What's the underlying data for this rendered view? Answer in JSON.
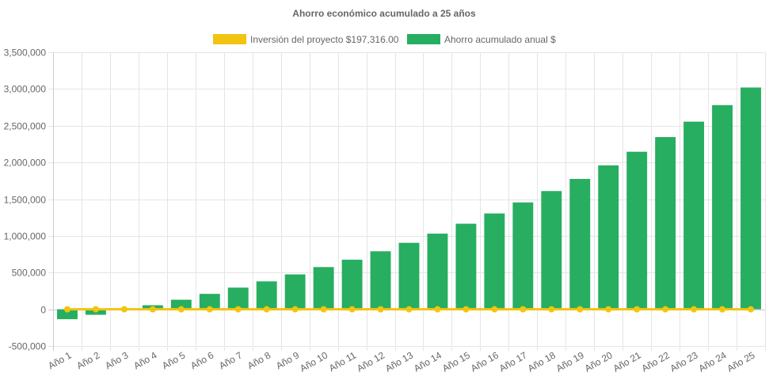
{
  "chart_data": {
    "type": "bar",
    "title": "Ahorro económico acumulado a 25 años",
    "categories": [
      "Año 1",
      "Año 2",
      "Año 3",
      "Año 4",
      "Año 5",
      "Año 6",
      "Año 7",
      "Año 8",
      "Año 9",
      "Año 10",
      "Año 11",
      "Año 12",
      "Año 13",
      "Año 14",
      "Año 15",
      "Año 16",
      "Año 17",
      "Año 18",
      "Año 19",
      "Año 20",
      "Año 21",
      "Año 22",
      "Año 23",
      "Año 24",
      "Año 25"
    ],
    "series": [
      {
        "name": "Inversión del proyecto $197,316.00",
        "type": "line",
        "color": "#f1c40f",
        "values": [
          0,
          0,
          0,
          0,
          0,
          0,
          0,
          0,
          0,
          0,
          0,
          0,
          0,
          0,
          0,
          0,
          0,
          0,
          0,
          0,
          0,
          0,
          0,
          0,
          0
        ]
      },
      {
        "name": "Ahorro acumulado anual $",
        "type": "bar",
        "color": "#27ae60",
        "values": [
          -135000,
          -75000,
          -5000,
          55000,
          130000,
          210000,
          295000,
          380000,
          475000,
          575000,
          675000,
          790000,
          905000,
          1030000,
          1165000,
          1305000,
          1455000,
          1610000,
          1775000,
          1960000,
          2145000,
          2345000,
          2555000,
          2780000,
          3020000
        ]
      }
    ],
    "ylim": [
      -500000,
      3500000
    ],
    "yticks": [
      -500000,
      0,
      500000,
      1000000,
      1500000,
      2000000,
      2500000,
      3000000,
      3500000
    ],
    "ytick_labels": [
      "-500,000",
      "0",
      "500,000",
      "1,000,000",
      "1,500,000",
      "2,000,000",
      "2,500,000",
      "3,000,000",
      "3,500,000"
    ],
    "grid": true,
    "legend_position": "top"
  }
}
